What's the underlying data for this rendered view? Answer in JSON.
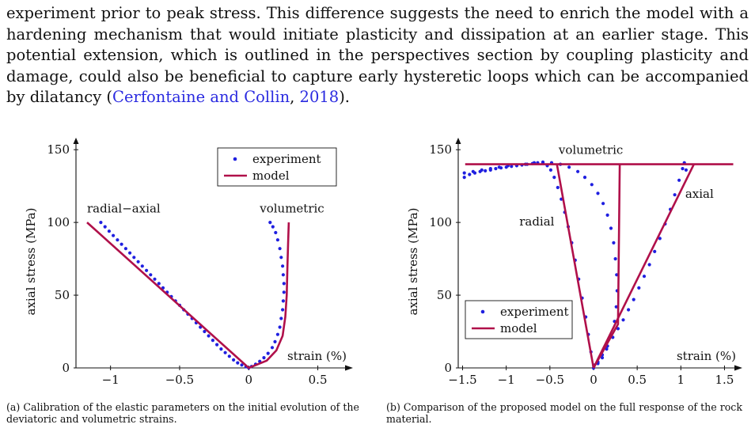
{
  "paragraph": {
    "text_before_cite": "experiment prior to peak stress. This difference suggests the need to enrich the model with a hardening mechanism that would initiate plasticity and dissipation at an earlier stage. This potential extension, which is outlined in the perspectives section by coupling plasticity and damage, could also be beneficial to capture early hysteretic loops which can be accompanied by dilatancy (",
    "cite_authors": "Cerfontaine and Collin",
    "cite_sep": ", ",
    "cite_year": "2018",
    "text_after_cite": ")."
  },
  "colors": {
    "experiment": "#1f1fe0",
    "model": "#b0104a",
    "link": "#2a2ae0"
  },
  "chart_data": [
    {
      "type": "scatter",
      "title": "",
      "xlabel": "strain (%)",
      "ylabel": "axial stress (MPa)",
      "xlim": [
        -1.25,
        0.72
      ],
      "ylim": [
        0,
        155
      ],
      "xticks": [
        -1,
        -0.5,
        0,
        0.5
      ],
      "xtick_labels": [
        "−1",
        "−0.5",
        "0",
        "0.5"
      ],
      "yticks": [
        0,
        50,
        100,
        150
      ],
      "ytick_labels": [
        "0",
        "50",
        "100",
        "150"
      ],
      "grid": false,
      "legend_position": "top-right",
      "legend": [
        {
          "name": "experiment",
          "style": "dots"
        },
        {
          "name": "model",
          "style": "line"
        }
      ],
      "annotations": [
        {
          "text": "radial−axial",
          "x": -1.17,
          "y": 107
        },
        {
          "text": "volumetric",
          "x": 0.08,
          "y": 107
        }
      ],
      "series": [
        {
          "name": "experiment",
          "points": [
            [
              -1.07,
              100
            ],
            [
              -1.04,
              97
            ],
            [
              -1.01,
              94
            ],
            [
              -0.98,
              91
            ],
            [
              -0.95,
              88
            ],
            [
              -0.92,
              85
            ],
            [
              -0.89,
              82
            ],
            [
              -0.86,
              79
            ],
            [
              -0.83,
              76
            ],
            [
              -0.8,
              73
            ],
            [
              -0.77,
              70
            ],
            [
              -0.74,
              67
            ],
            [
              -0.71,
              64
            ],
            [
              -0.68,
              61
            ],
            [
              -0.65,
              58
            ],
            [
              -0.62,
              55
            ],
            [
              -0.59,
              52
            ],
            [
              -0.56,
              49
            ],
            [
              -0.53,
              46
            ],
            [
              -0.5,
              43
            ],
            [
              -0.47,
              40
            ],
            [
              -0.44,
              37
            ],
            [
              -0.41,
              34
            ],
            [
              -0.38,
              31
            ],
            [
              -0.35,
              28
            ],
            [
              -0.32,
              25
            ],
            [
              -0.29,
              22
            ],
            [
              -0.26,
              19
            ],
            [
              -0.23,
              16
            ],
            [
              -0.2,
              13
            ],
            [
              -0.17,
              10.5
            ],
            [
              -0.14,
              8
            ],
            [
              -0.11,
              5.5
            ],
            [
              -0.08,
              3.5
            ],
            [
              -0.05,
              2
            ],
            [
              -0.02,
              0.8
            ],
            [
              0.0,
              0
            ],
            [
              0.02,
              1
            ],
            [
              0.05,
              2.5
            ],
            [
              0.08,
              4.5
            ],
            [
              0.11,
              7
            ],
            [
              0.14,
              10
            ],
            [
              0.17,
              14
            ],
            [
              0.19,
              18
            ],
            [
              0.21,
              23
            ],
            [
              0.225,
              28
            ],
            [
              0.235,
              34
            ],
            [
              0.245,
              40
            ],
            [
              0.25,
              46
            ],
            [
              0.255,
              52
            ],
            [
              0.255,
              58
            ],
            [
              0.25,
              64
            ],
            [
              0.245,
              70
            ],
            [
              0.235,
              76
            ],
            [
              0.225,
              82
            ],
            [
              0.21,
              88
            ],
            [
              0.195,
              93
            ],
            [
              0.175,
              97
            ],
            [
              0.155,
              100
            ]
          ]
        },
        {
          "name": "model",
          "points": [
            [
              -1.17,
              100
            ],
            [
              0.0,
              0
            ],
            [
              0.13,
              5
            ],
            [
              0.2,
              12
            ],
            [
              0.245,
              22
            ],
            [
              0.265,
              35
            ],
            [
              0.275,
              50
            ],
            [
              0.28,
              70
            ],
            [
              0.285,
              85
            ],
            [
              0.29,
              100
            ]
          ]
        }
      ]
    },
    {
      "type": "scatter",
      "title": "",
      "xlabel": "strain (%)",
      "ylabel": "axial stress (MPa)",
      "xlim": [
        -1.55,
        1.65
      ],
      "ylim": [
        0,
        155
      ],
      "xticks": [
        -1.5,
        -1,
        -0.5,
        0,
        0.5,
        1,
        1.5
      ],
      "xtick_labels": [
        "−1.5",
        "−1",
        "−0.5",
        "0",
        "0.5",
        "1",
        "1.5"
      ],
      "yticks": [
        0,
        50,
        100,
        150
      ],
      "ytick_labels": [
        "0",
        "50",
        "100",
        "150"
      ],
      "grid": false,
      "legend_position": "bottom-left",
      "legend": [
        {
          "name": "experiment",
          "style": "dots"
        },
        {
          "name": "model",
          "style": "line"
        }
      ],
      "annotations": [
        {
          "text": "volumetric",
          "x": -0.4,
          "y": 147
        },
        {
          "text": "radial",
          "x": -0.85,
          "y": 98
        },
        {
          "text": "axial",
          "x": 1.05,
          "y": 117
        }
      ],
      "series": [
        {
          "name": "experiment-radial",
          "points": [
            [
              -1.48,
              131
            ],
            [
              -1.42,
              133
            ],
            [
              -1.36,
              134
            ],
            [
              -1.3,
              135
            ],
            [
              -1.24,
              135.5
            ],
            [
              -1.18,
              136
            ],
            [
              -1.12,
              137
            ],
            [
              -1.06,
              137.5
            ],
            [
              -1.0,
              138
            ],
            [
              -0.94,
              138.5
            ],
            [
              -0.88,
              139
            ],
            [
              -0.82,
              139.5
            ],
            [
              -0.76,
              140
            ],
            [
              -0.7,
              140.5
            ],
            [
              -0.64,
              141
            ],
            [
              -0.58,
              141
            ],
            [
              -0.53,
              139
            ],
            [
              -0.49,
              136
            ],
            [
              -0.45,
              131
            ],
            [
              -0.41,
              124
            ],
            [
              -0.37,
              116
            ],
            [
              -0.33,
              107
            ],
            [
              -0.29,
              97
            ],
            [
              -0.25,
              86
            ],
            [
              -0.21,
              74
            ],
            [
              -0.17,
              61
            ],
            [
              -0.13,
              48
            ],
            [
              -0.09,
              35
            ],
            [
              -0.06,
              23
            ],
            [
              -0.03,
              11
            ],
            [
              0.0,
              2
            ]
          ]
        },
        {
          "name": "experiment-volumetric",
          "points": [
            [
              -1.48,
              134
            ],
            [
              -1.38,
              135
            ],
            [
              -1.28,
              136
            ],
            [
              -1.18,
              137
            ],
            [
              -1.08,
              138
            ],
            [
              -0.98,
              139
            ],
            [
              -0.88,
              139.5
            ],
            [
              -0.78,
              140
            ],
            [
              -0.68,
              141
            ],
            [
              -0.58,
              141.5
            ],
            [
              -0.48,
              141
            ],
            [
              -0.38,
              140
            ],
            [
              -0.28,
              138
            ],
            [
              -0.18,
              135
            ],
            [
              -0.1,
              131
            ],
            [
              -0.02,
              126
            ],
            [
              0.05,
              120
            ],
            [
              0.11,
              113
            ],
            [
              0.16,
              105
            ],
            [
              0.2,
              96
            ],
            [
              0.23,
              86
            ],
            [
              0.25,
              75
            ],
            [
              0.265,
              64
            ],
            [
              0.27,
              53
            ],
            [
              0.26,
              42
            ],
            [
              0.24,
              32
            ],
            [
              0.2,
              22
            ],
            [
              0.15,
              13
            ],
            [
              0.1,
              7
            ],
            [
              0.05,
              3
            ],
            [
              0.0,
              0
            ]
          ]
        },
        {
          "name": "experiment-axial",
          "points": [
            [
              0.0,
              0
            ],
            [
              0.05,
              4
            ],
            [
              0.1,
              9
            ],
            [
              0.16,
              15
            ],
            [
              0.22,
              21
            ],
            [
              0.28,
              27
            ],
            [
              0.34,
              33
            ],
            [
              0.4,
              40
            ],
            [
              0.46,
              47
            ],
            [
              0.52,
              55
            ],
            [
              0.58,
              63
            ],
            [
              0.64,
              71
            ],
            [
              0.7,
              80
            ],
            [
              0.76,
              89
            ],
            [
              0.82,
              99
            ],
            [
              0.88,
              109
            ],
            [
              0.93,
              119
            ],
            [
              0.98,
              129
            ],
            [
              1.02,
              137
            ],
            [
              1.04,
              141
            ],
            [
              1.06,
              136
            ]
          ]
        },
        {
          "name": "model-plateau",
          "points": [
            [
              -1.47,
              140
            ],
            [
              1.6,
              140
            ]
          ]
        },
        {
          "name": "model-radial",
          "points": [
            [
              -0.42,
              140
            ],
            [
              0.0,
              0
            ]
          ]
        },
        {
          "name": "model-volumetric",
          "points": [
            [
              0.0,
              0
            ],
            [
              0.28,
              30
            ],
            [
              0.3,
              140
            ]
          ]
        },
        {
          "name": "model-axial",
          "points": [
            [
              0.0,
              0
            ],
            [
              1.15,
              140
            ]
          ]
        }
      ]
    }
  ],
  "captions": {
    "a": "(a) Calibration of the elastic parameters on the initial evolution of the deviatoric and volumetric strains.",
    "b": "(b) Comparison of the proposed model on the full response of the rock material."
  }
}
